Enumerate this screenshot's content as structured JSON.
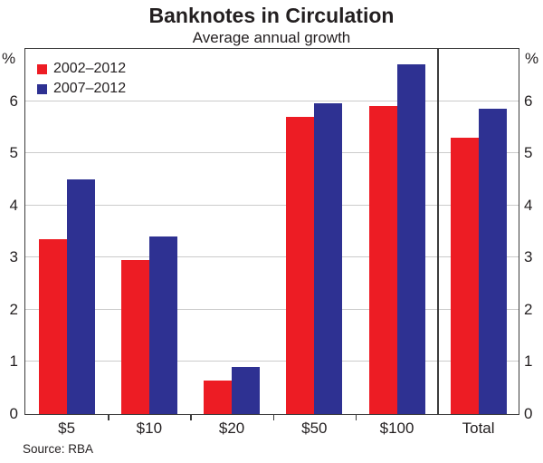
{
  "title": "Banknotes in Circulation",
  "subtitle": "Average annual growth",
  "source": "Source: RBA",
  "colors": {
    "series_red": "#ED1C24",
    "series_blue": "#2E3192",
    "frame": "#3c3c3c",
    "gridline": "#cbcbcb",
    "text": "#231f20"
  },
  "chart_data": {
    "type": "bar",
    "categories": [
      "$5",
      "$10",
      "$20",
      "$50",
      "$100",
      "Total"
    ],
    "series": [
      {
        "name": "2002–2012",
        "color": "#ED1C24",
        "values": [
          3.35,
          2.95,
          0.65,
          5.7,
          5.9,
          5.3
        ]
      },
      {
        "name": "2007–2012",
        "color": "#2E3192",
        "values": [
          4.5,
          3.4,
          0.9,
          5.95,
          6.7,
          5.85
        ]
      }
    ],
    "title": "Banknotes in Circulation",
    "subtitle": "Average annual growth",
    "xlabel": "",
    "ylabel": "%",
    "ylabel_position": "both-axes-top",
    "ylim": [
      0,
      7
    ],
    "yticks": [
      0,
      1,
      2,
      3,
      4,
      5,
      6
    ],
    "ytick_labels": [
      "0",
      "1",
      "2",
      "3",
      "4",
      "5",
      "6"
    ],
    "grid": true,
    "legend_position": "top-left-inside",
    "separator_before_category": "Total"
  }
}
